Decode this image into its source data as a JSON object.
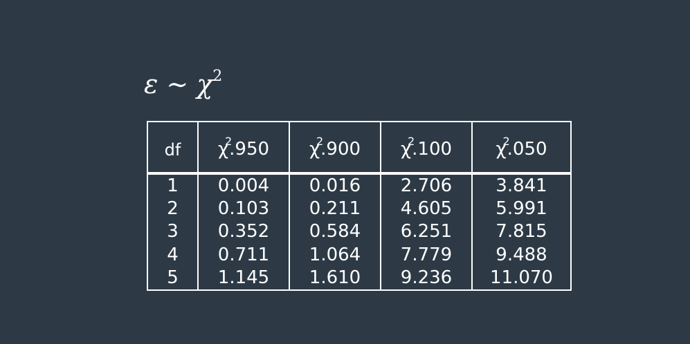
{
  "formula": {
    "epsilon": "ε",
    "tilde": "∼",
    "chi": "χ",
    "power": "2"
  },
  "table": {
    "header": {
      "df": "df",
      "columns": [
        {
          "letter": "χ",
          "power": "2",
          "sub": ".950"
        },
        {
          "letter": "χ",
          "power": "2",
          "sub": ".900"
        },
        {
          "letter": "χ",
          "power": "2",
          "sub": ".100"
        },
        {
          "letter": "χ",
          "power": "2",
          "sub": ".050"
        }
      ]
    },
    "rows": [
      [
        "1",
        "0.004",
        "0.016",
        "2.706",
        "3.841"
      ],
      [
        "2",
        "0.103",
        "0.211",
        "4.605",
        "5.991"
      ],
      [
        "3",
        "0.352",
        "0.584",
        "6.251",
        "7.815"
      ],
      [
        "4",
        "0.711",
        "1.064",
        "7.779",
        "9.488"
      ],
      [
        "5",
        "1.145",
        "1.610",
        "9.236",
        "11.070"
      ]
    ]
  }
}
